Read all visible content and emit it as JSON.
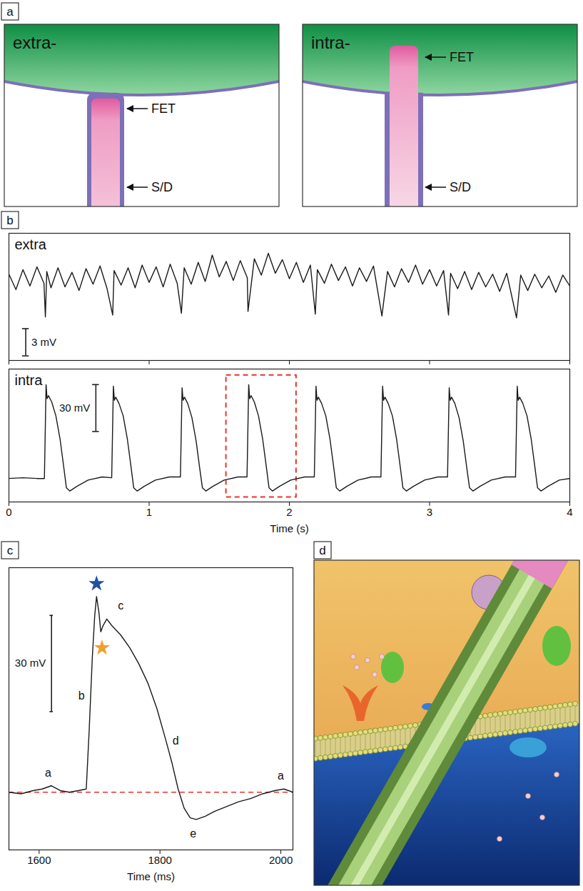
{
  "panel_labels": [
    "a",
    "b",
    "c",
    "d"
  ],
  "panel_a": [
    {
      "title": "extra-",
      "labels": [
        "FET",
        "S/D"
      ]
    },
    {
      "title": "intra-",
      "labels": [
        "FET",
        "S/D"
      ]
    }
  ],
  "chart_data": [
    {
      "type": "line",
      "title": "extra",
      "color": "#1a1a1a",
      "x": [
        0,
        0.05,
        0.1,
        0.15,
        0.2,
        0.25,
        0.26,
        0.27,
        0.3,
        0.35,
        0.4,
        0.45,
        0.5,
        0.55,
        0.6,
        0.65,
        0.7,
        0.74,
        0.75,
        0.8,
        0.85,
        0.9,
        0.95,
        1,
        1.05,
        1.1,
        1.15,
        1.2,
        1.23,
        1.25,
        1.3,
        1.35,
        1.4,
        1.45,
        1.5,
        1.55,
        1.6,
        1.65,
        1.7,
        1.705,
        1.75,
        1.8,
        1.85,
        1.9,
        1.95,
        2,
        2.05,
        2.1,
        2.15,
        2.185,
        2.2,
        2.25,
        2.3,
        2.35,
        2.4,
        2.45,
        2.5,
        2.55,
        2.6,
        2.66,
        2.7,
        2.75,
        2.8,
        2.85,
        2.9,
        2.95,
        3,
        3.05,
        3.1,
        3.135,
        3.15,
        3.2,
        3.25,
        3.3,
        3.35,
        3.4,
        3.45,
        3.5,
        3.55,
        3.62,
        3.65,
        3.7,
        3.75,
        3.8,
        3.85,
        3.9,
        3.95,
        4
      ],
      "values": [
        0.5,
        -1.2,
        1,
        -0.8,
        1.3,
        -0.5,
        -4.2,
        0.8,
        -1,
        1.2,
        -0.9,
        0.7,
        -1.3,
        1.1,
        -0.6,
        1.4,
        -1.1,
        -4,
        0.9,
        -0.7,
        1.2,
        -1,
        1.5,
        -0.4,
        1.3,
        -0.9,
        1.6,
        -0.5,
        -3.8,
        1.2,
        -0.6,
        1.8,
        -0.3,
        2.6,
        0.2,
        1.9,
        -0.2,
        2,
        0.1,
        -3.6,
        2.2,
        0.4,
        2.8,
        0.6,
        2.1,
        0,
        1.8,
        -0.4,
        1.5,
        -3.9,
        1,
        -0.5,
        1.6,
        -0.2,
        1.3,
        -0.8,
        1.2,
        -0.3,
        1.4,
        -4.1,
        0.8,
        -0.9,
        1.1,
        -0.4,
        1.5,
        -0.6,
        1,
        -0.8,
        0.9,
        -4,
        0.6,
        -1.1,
        0.8,
        -1.2,
        0.7,
        -0.9,
        0.5,
        -1.4,
        0.6,
        -4.3,
        0.4,
        -1.3,
        0.5,
        -1,
        0.3,
        -1.5,
        0.4,
        -0.8
      ],
      "xlim": [
        0,
        4
      ],
      "xticks": [
        0,
        1,
        2,
        3,
        4
      ],
      "ylim": [
        -9,
        5
      ],
      "tick_labels": false,
      "scale_bar": {
        "value": 3,
        "label": "3 mV"
      }
    },
    {
      "type": "line",
      "title": "intra",
      "color": "#1a1a1a",
      "x": [
        0,
        0.1,
        0.2,
        0.253,
        0.265,
        0.272,
        0.282,
        0.305,
        0.335,
        0.365,
        0.39,
        0.41,
        0.435,
        0.485,
        0.565,
        0.665,
        0.733,
        0.745,
        0.752,
        0.762,
        0.785,
        0.815,
        0.845,
        0.87,
        0.89,
        0.915,
        0.965,
        1.045,
        1.145,
        1.223,
        1.235,
        1.242,
        1.252,
        1.275,
        1.305,
        1.335,
        1.36,
        1.38,
        1.405,
        1.455,
        1.535,
        1.635,
        1.698,
        1.71,
        1.717,
        1.727,
        1.75,
        1.78,
        1.81,
        1.835,
        1.855,
        1.88,
        1.93,
        2.01,
        2.11,
        2.178,
        2.19,
        2.197,
        2.207,
        2.23,
        2.26,
        2.29,
        2.315,
        2.335,
        2.36,
        2.41,
        2.49,
        2.585,
        2.653,
        2.665,
        2.672,
        2.682,
        2.705,
        2.735,
        2.765,
        2.79,
        2.81,
        2.835,
        2.885,
        2.965,
        3.06,
        3.128,
        3.14,
        3.147,
        3.157,
        3.18,
        3.21,
        3.24,
        3.265,
        3.285,
        3.31,
        3.36,
        3.44,
        3.54,
        3.613,
        3.625,
        3.632,
        3.642,
        3.665,
        3.695,
        3.725,
        3.75,
        3.77,
        3.795,
        3.845,
        3.925,
        4
      ],
      "values": [
        0,
        0.5,
        0,
        0,
        60,
        51,
        53,
        49,
        40,
        25,
        8,
        -6,
        -8,
        -5,
        -1,
        1,
        0.5,
        59,
        50,
        52,
        48,
        40,
        25,
        8,
        -6,
        -8,
        -5,
        -1,
        1,
        1,
        58,
        50,
        52,
        48,
        39,
        24,
        7,
        -6,
        -8,
        -5,
        -1,
        1,
        1,
        60,
        51,
        53,
        49,
        40,
        25,
        8,
        -6,
        -8,
        -5,
        -1,
        1,
        1,
        59,
        50,
        52,
        48,
        40,
        25,
        8,
        -6,
        -8,
        -5,
        -1,
        1,
        1,
        59,
        50,
        52,
        48,
        40,
        25,
        8,
        -6,
        -8,
        -5,
        -1,
        1,
        1,
        58,
        50,
        52,
        48,
        39,
        24,
        7,
        -6,
        -8,
        -5,
        -1,
        1,
        1,
        59,
        50,
        52,
        48,
        40,
        25,
        8,
        -6,
        -8,
        -5,
        -1,
        0
      ],
      "xlim": [
        0,
        4
      ],
      "xticks": [
        0,
        1,
        2,
        3,
        4
      ],
      "xlabel": "Time (s)",
      "ylim": [
        -15,
        70
      ],
      "tick_labels": "x",
      "scale_bar": {
        "value": 30,
        "label": "30 mV"
      },
      "highlight": {
        "x": [
          1.55,
          2.05
        ],
        "y": [
          -12,
          66
        ],
        "color": "#e8322c",
        "line_style": "dashed"
      }
    },
    {
      "type": "line",
      "color": "#1a1a1a",
      "x": [
        1550,
        1570,
        1590,
        1605,
        1620,
        1635,
        1650,
        1665,
        1678,
        1683,
        1688,
        1692,
        1695,
        1699,
        1702,
        1706,
        1712,
        1720,
        1735,
        1750,
        1765,
        1780,
        1795,
        1810,
        1820,
        1830,
        1840,
        1850,
        1860,
        1875,
        1890,
        1910,
        1930,
        1950,
        1970,
        1990,
        2005,
        2020
      ],
      "values": [
        0,
        -0.5,
        0.5,
        1,
        2,
        0.5,
        0,
        0.5,
        1,
        20,
        42,
        55,
        61,
        56,
        50,
        52,
        54,
        52,
        49,
        45,
        40,
        34,
        26,
        16,
        9,
        1,
        -5,
        -8,
        -8.5,
        -7.5,
        -6,
        -4.5,
        -3,
        -2,
        -0.5,
        0.5,
        1,
        0
      ],
      "xlim": [
        1550,
        2020
      ],
      "xticks": [
        1600,
        1800,
        2000
      ],
      "xlabel": "Time (ms)",
      "ylim": [
        -18,
        70
      ],
      "tick_labels": "x",
      "scale_bar": {
        "value": 30,
        "label": "30 mV"
      },
      "baseline": {
        "value": 0,
        "color": "#e8322c",
        "line_style": "dashed"
      },
      "annotations": [
        {
          "text": "a",
          "x": 1615,
          "y": 6
        },
        {
          "text": "b",
          "x": 1670,
          "y": 30
        },
        {
          "text": "c",
          "x": 1735,
          "y": 58
        },
        {
          "text": "d",
          "x": 1826,
          "y": 16
        },
        {
          "text": "e",
          "x": 1855,
          "y": -13
        },
        {
          "text": "a",
          "x": 2000,
          "y": 5
        }
      ],
      "markers": [
        {
          "x": 1695,
          "y": 65,
          "color": "#1f4fa0",
          "marker": "star"
        },
        {
          "x": 1704,
          "y": 45,
          "color": "#f0a030",
          "marker": "star"
        }
      ]
    }
  ]
}
